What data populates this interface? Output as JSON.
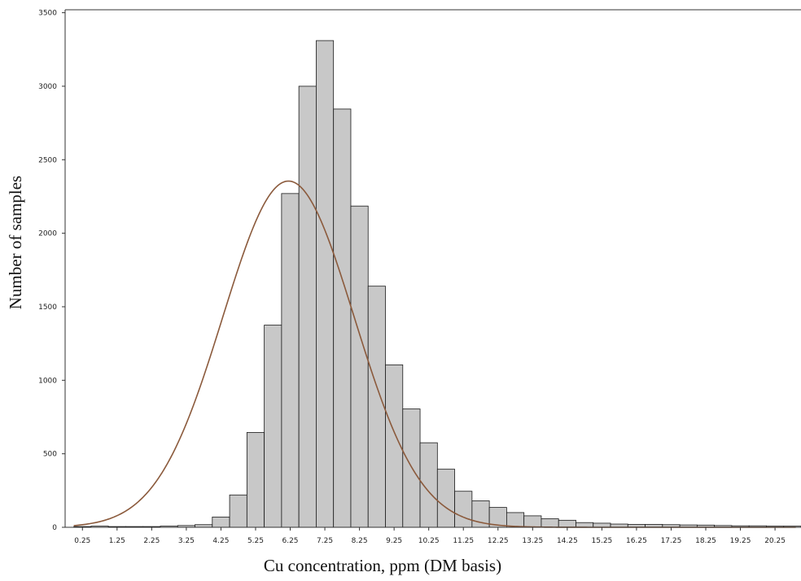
{
  "chart_data": {
    "type": "bar",
    "xlabel": "Cu concentration, ppm (DM basis)",
    "ylabel": "Number of samples",
    "bin_start": 0.0,
    "bin_width": 0.5,
    "values": [
      5,
      8,
      5,
      5,
      5,
      8,
      12,
      18,
      70,
      220,
      645,
      1375,
      2270,
      3000,
      3310,
      2845,
      2185,
      1640,
      1105,
      805,
      575,
      395,
      245,
      180,
      135,
      100,
      78,
      58,
      48,
      32,
      28,
      22,
      20,
      20,
      18,
      16,
      15,
      12,
      10,
      10,
      8,
      8,
      8,
      6,
      6,
      6,
      6,
      5,
      5,
      5,
      5,
      5,
      5,
      5,
      5,
      5,
      5,
      5,
      5,
      5,
      5,
      5,
      5,
      5,
      5,
      5,
      5,
      5,
      5,
      5,
      5,
      5,
      5,
      5,
      5,
      5,
      5,
      5,
      5,
      5,
      5,
      5
    ],
    "x_ticks": [
      "0.25",
      "1.25",
      "2.25",
      "3.25",
      "4.25",
      "5.25",
      "6.25",
      "7.25",
      "8.25",
      "9.25",
      "10.25",
      "11.25",
      "12.25",
      "13.25",
      "14.25",
      "15.25",
      "16.25",
      "17.25",
      "18.25",
      "19.25",
      "20.25"
    ],
    "y_ticks": [
      "0",
      "500",
      "1000",
      "1500",
      "2000",
      "2500",
      "3000",
      "3500"
    ],
    "ylim": [
      0,
      3520
    ],
    "xlim": [
      -0.25,
      21.0
    ],
    "fit_curve": {
      "type": "normal",
      "mean": 6.2,
      "sd": 1.9,
      "peak": 2355,
      "color": "#8b5a3c"
    },
    "bar_fill": "#c8c8c8",
    "bar_stroke": "#1a1a1a",
    "grid": false
  }
}
